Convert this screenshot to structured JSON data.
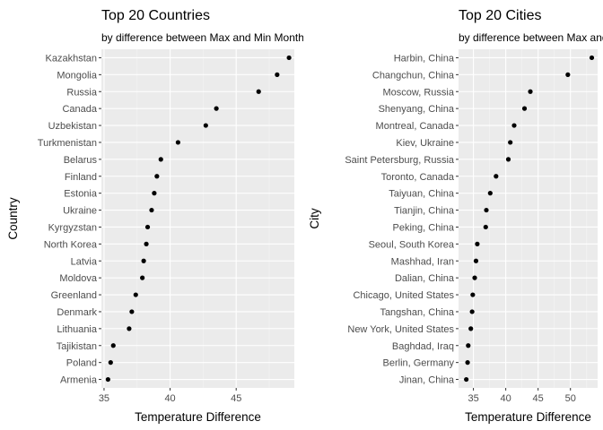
{
  "chart_data": [
    {
      "type": "scatter",
      "title": "Top 20 Countries",
      "subtitle": "by difference between Max and Min Monthly Average Temperature",
      "xlabel": "Temperature Difference",
      "ylabel": "Country",
      "xlim": [
        34.8,
        49.4
      ],
      "xticks": [
        35,
        40,
        45
      ],
      "grid": true,
      "legend": "none",
      "categories": [
        "Kazakhstan",
        "Mongolia",
        "Russia",
        "Canada",
        "Uzbekistan",
        "Turkmenistan",
        "Belarus",
        "Finland",
        "Estonia",
        "Ukraine",
        "Kyrgyzstan",
        "North Korea",
        "Latvia",
        "Moldova",
        "Greenland",
        "Denmark",
        "Lithuania",
        "Tajikistan",
        "Poland",
        "Armenia"
      ],
      "values": [
        49.0,
        48.1,
        46.7,
        43.5,
        42.7,
        40.6,
        39.3,
        39.0,
        38.8,
        38.6,
        38.3,
        38.2,
        38.0,
        37.9,
        37.4,
        37.1,
        36.9,
        35.7,
        35.5,
        35.3
      ]
    },
    {
      "type": "scatter",
      "title": "Top 20 Cities",
      "subtitle": "by difference between Max and Min Monthly Average Temperature",
      "xlabel": "Temperature Difference",
      "ylabel": "City",
      "xlim": [
        32.7,
        54.2
      ],
      "xticks": [
        35,
        40,
        45,
        50
      ],
      "grid": true,
      "legend": "none",
      "categories": [
        "Harbin, China",
        "Changchun, China",
        "Moscow, Russia",
        "Shenyang, China",
        "Montreal, Canada",
        "Kiev, Ukraine",
        "Saint Petersburg, Russia",
        "Toronto, Canada",
        "Taiyuan, China",
        "Tianjin, China",
        "Peking, China",
        "Seoul, South Korea",
        "Mashhad, Iran",
        "Dalian, China",
        "Chicago, United States",
        "Tangshan, China",
        "New York, United States",
        "Baghdad, Iraq",
        "Berlin, Germany",
        "Jinan, China"
      ],
      "values": [
        53.3,
        49.6,
        43.8,
        42.9,
        41.3,
        40.7,
        40.4,
        38.5,
        37.6,
        37.0,
        36.9,
        35.6,
        35.4,
        35.2,
        34.9,
        34.8,
        34.6,
        34.2,
        34.1,
        33.9
      ]
    }
  ],
  "colors": {
    "panel_background": "#ebebeb",
    "grid_major": "#ffffff",
    "grid_minor": "#f5f5f5",
    "point": "#000000",
    "tick_label": "#4d4d4d",
    "tick_mark": "#333333"
  }
}
